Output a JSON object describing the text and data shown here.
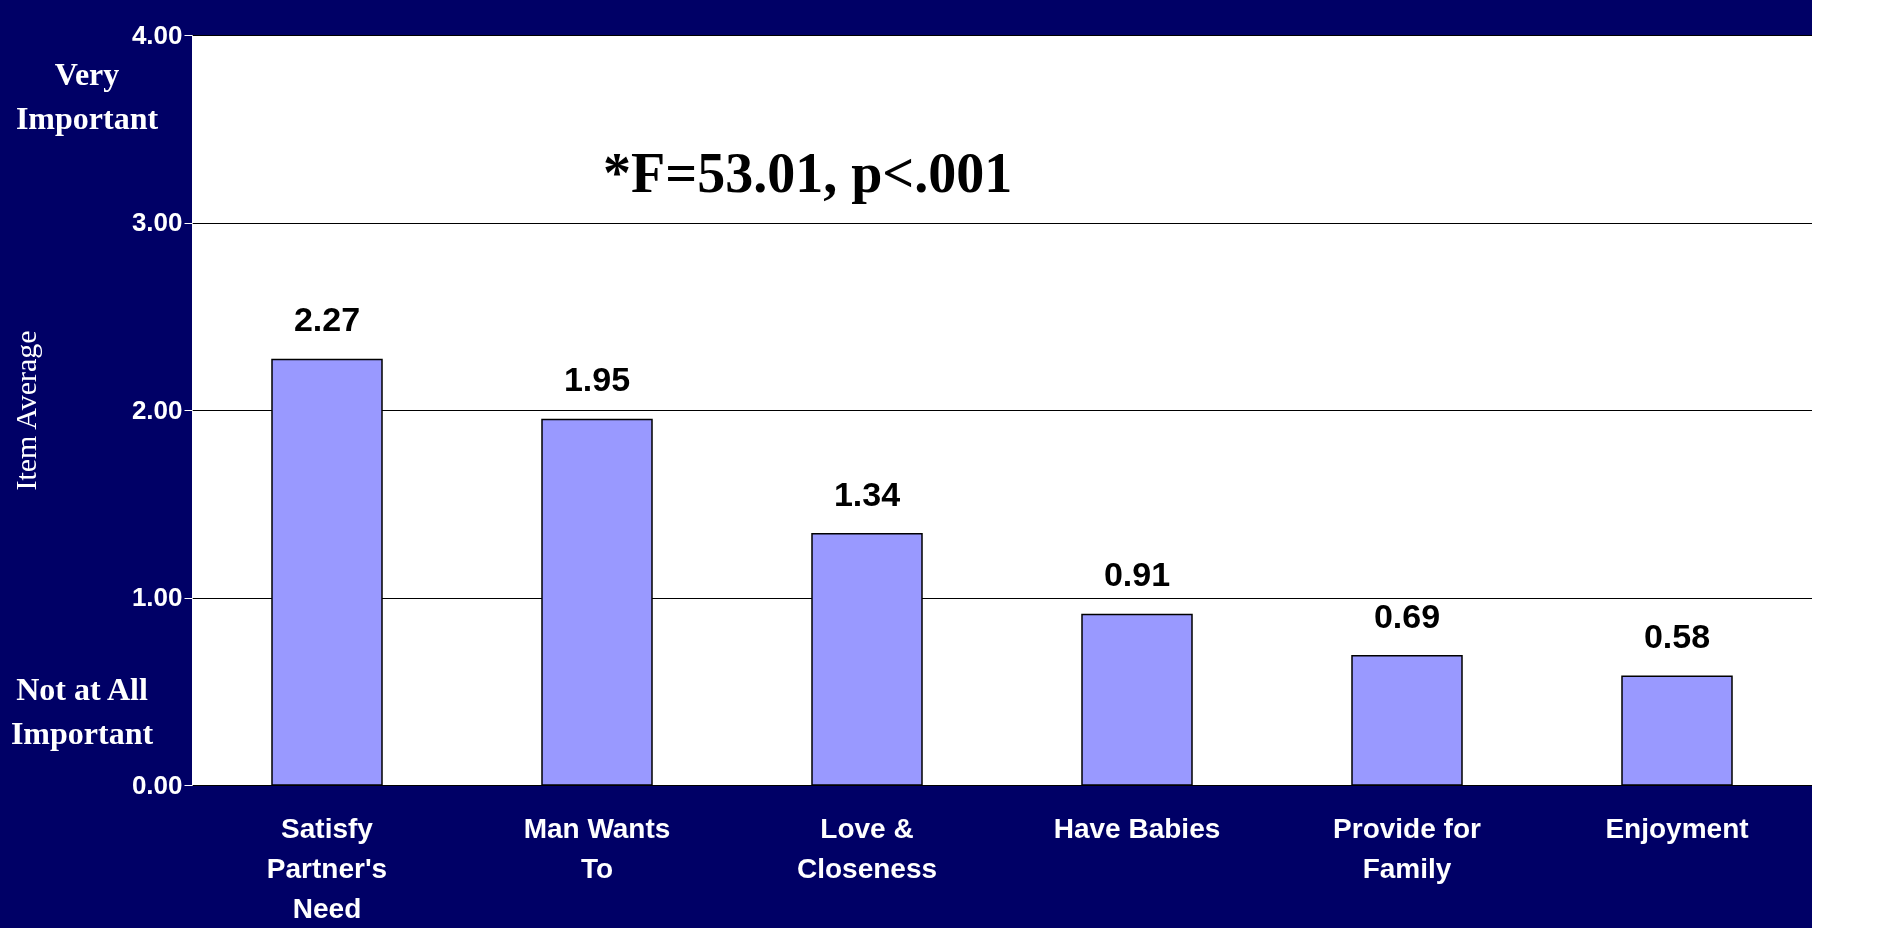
{
  "chart_data": {
    "type": "bar",
    "categories": [
      "Satisfy Partner's Need",
      "Man Wants To",
      "Love & Closeness",
      "Have Babies",
      "Provide for Family",
      "Enjoyment"
    ],
    "values": [
      2.27,
      1.95,
      1.34,
      0.91,
      0.69,
      0.58
    ],
    "color": "#9999ff",
    "ylabel": "Item Average",
    "ylim": [
      0,
      4
    ],
    "yticks": [
      {
        "value": 0,
        "label": "0.00"
      },
      {
        "value": 1,
        "label": "1.00"
      },
      {
        "value": 2,
        "label": "2.00"
      },
      {
        "value": 3,
        "label": "3.00"
      },
      {
        "value": 4,
        "label": "4.00"
      }
    ],
    "grid": "y",
    "data_labels": true,
    "annotations": [
      "Very Important",
      "Not at All Important",
      "*F=53.01, p<.001"
    ]
  }
}
